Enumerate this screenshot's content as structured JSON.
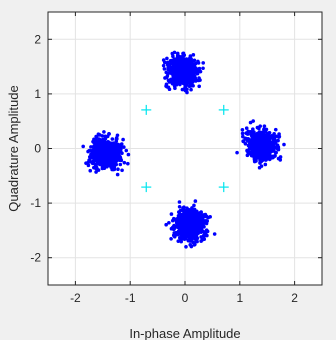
{
  "chart_data": {
    "type": "scatter",
    "xlabel": "In-phase Amplitude",
    "ylabel": "Quadrature Amplitude",
    "xlim": [
      -2.5,
      2.5
    ],
    "ylim": [
      -2.5,
      2.5
    ],
    "x_ticks": [
      -2,
      -1,
      0,
      1,
      2
    ],
    "y_ticks": [
      -2,
      -1,
      0,
      1,
      2
    ],
    "x_tick_labels": [
      "-2",
      "-1",
      "0",
      "1",
      "2"
    ],
    "y_tick_labels": [
      "-2",
      "-1",
      "0",
      "1",
      "2"
    ],
    "grid": true,
    "series": [
      {
        "role": "received",
        "marker": "dot",
        "color": "#0000ff",
        "clusters": [
          {
            "center": [
              -0.05,
              1.4
            ],
            "spread": 0.13,
            "count": 700
          },
          {
            "center": [
              -1.45,
              -0.1
            ],
            "spread": 0.13,
            "count": 700
          },
          {
            "center": [
              1.4,
              0.05
            ],
            "spread": 0.13,
            "count": 700
          },
          {
            "center": [
              0.1,
              -1.4
            ],
            "spread": 0.13,
            "count": 700
          }
        ]
      },
      {
        "role": "reference",
        "marker": "plus",
        "color": "#00e5ee",
        "x": [
          -0.707,
          0.707,
          -0.707,
          0.707
        ],
        "y": [
          0.707,
          0.707,
          -0.707,
          -0.707
        ]
      }
    ],
    "colors": {
      "background": "#f0f0f0",
      "plot_area": "#ffffff",
      "grid": "#e3e3e3",
      "axis": "#262626"
    }
  }
}
